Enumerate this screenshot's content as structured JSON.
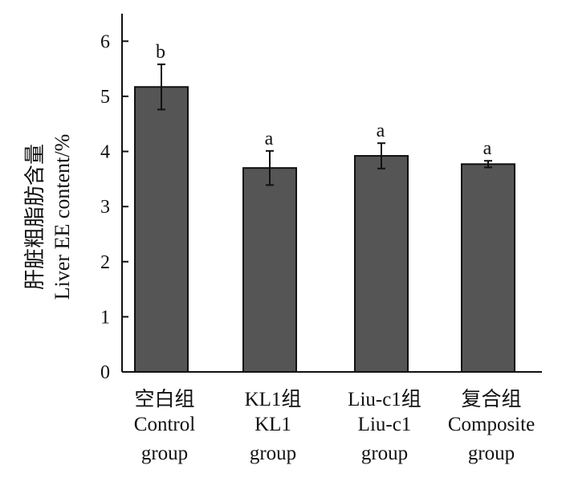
{
  "chart_data": {
    "type": "bar",
    "title": "",
    "ylabel_cn": "肝脏粗脂肪含量",
    "ylabel_en": "Liver EE content/%",
    "xlabel": "",
    "ylim": [
      0,
      6.5
    ],
    "yticks": [
      "0",
      "1",
      "2",
      "3",
      "4",
      "5",
      "6"
    ],
    "categories": [
      {
        "cn": "空白组",
        "en1": "Control",
        "en2": "group"
      },
      {
        "cn": "KL1组",
        "en1": "KL1",
        "en2": "group"
      },
      {
        "cn": "Liu-c1组",
        "en1": "Liu-c1",
        "en2": "group"
      },
      {
        "cn": "复合组",
        "en1": "Composite",
        "en2": "group"
      }
    ],
    "values": [
      5.17,
      3.7,
      3.92,
      3.77
    ],
    "errors": [
      0.41,
      0.31,
      0.23,
      0.06
    ],
    "significance": [
      "b",
      "a",
      "a",
      "a"
    ],
    "bar_color": "#555555",
    "grid": false,
    "legend": "none"
  }
}
